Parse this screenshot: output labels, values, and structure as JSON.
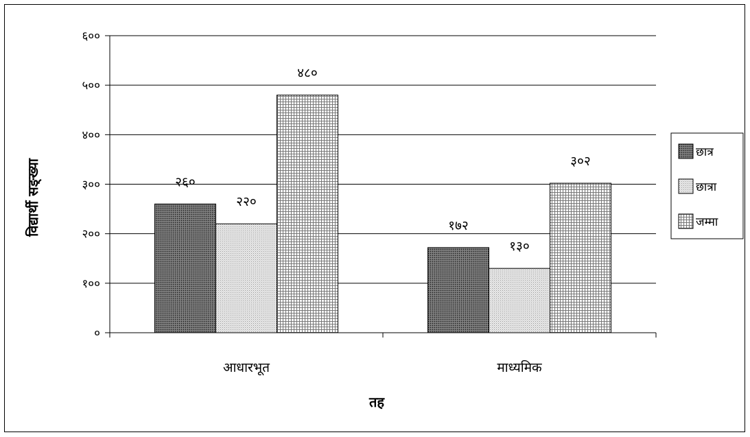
{
  "chart_data": {
    "type": "bar",
    "xlabel": "तह",
    "ylabel": "विद्यार्थी सङ्ख्या",
    "ylim": [
      0,
      600
    ],
    "yticks": [
      0,
      100,
      200,
      300,
      400,
      500,
      600
    ],
    "ytick_labels": [
      "०",
      "१००",
      "२००",
      "३००",
      "४००",
      "५००",
      "६००"
    ],
    "categories": [
      "आधारभूत",
      "माध्यमिक"
    ],
    "series": [
      {
        "name": "छात्र",
        "values": [
          260,
          172
        ],
        "value_labels": [
          "२६०",
          "१७२"
        ],
        "pattern": "dense-dark"
      },
      {
        "name": "छात्रा",
        "values": [
          220,
          130
        ],
        "value_labels": [
          "२२०",
          "१३०"
        ],
        "pattern": "dotted-light"
      },
      {
        "name": "जम्मा",
        "values": [
          480,
          302
        ],
        "value_labels": [
          "४८०",
          "३०२"
        ],
        "pattern": "grid-check"
      }
    ],
    "grid": true,
    "legend_position": "right"
  }
}
